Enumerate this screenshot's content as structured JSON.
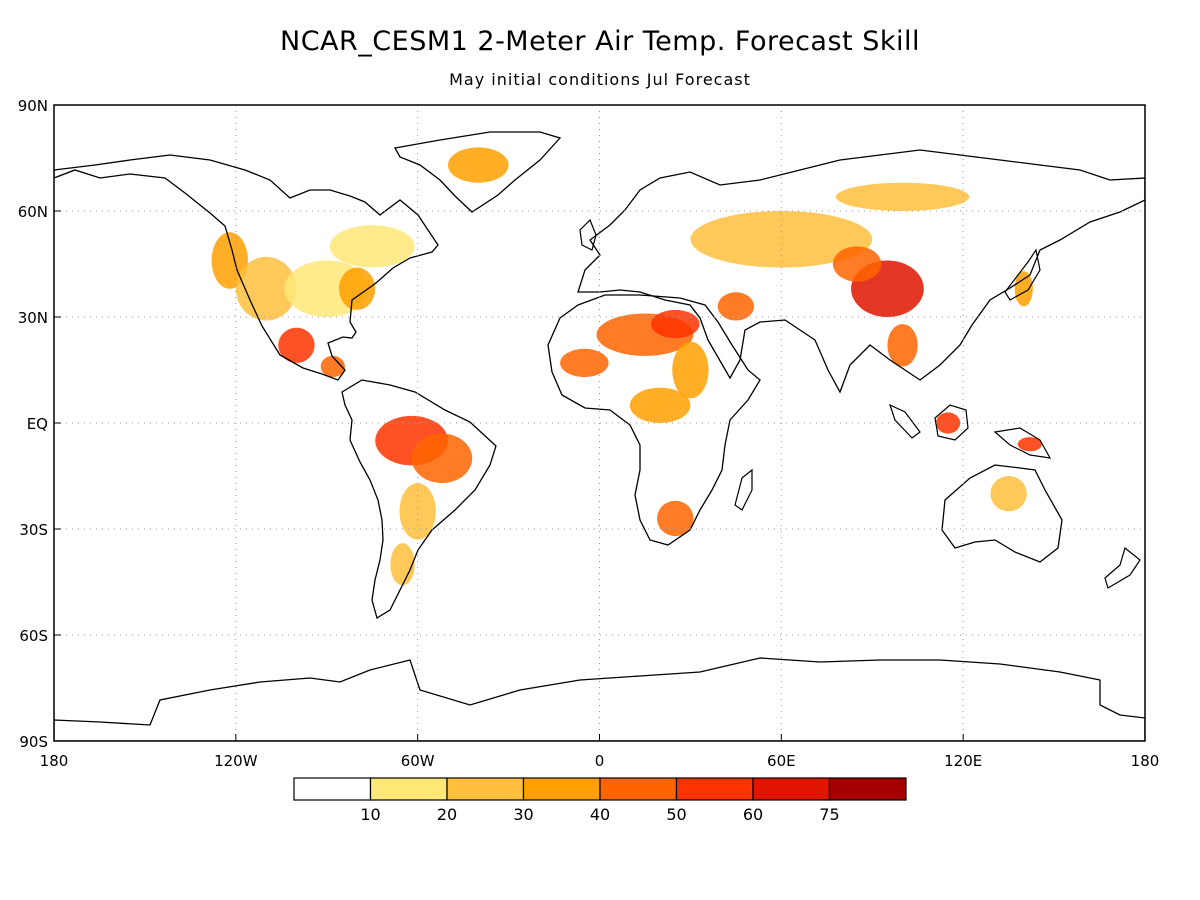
{
  "title": "NCAR_CESM1 2-Meter Air Temp. Forecast Skill",
  "subtitle": "May initial conditions   Jul Forecast",
  "map": {
    "projection": "equirectangular",
    "lon_range": [
      -180,
      180
    ],
    "lat_range": [
      -90,
      90
    ],
    "grid": "dotted",
    "lon_ticks": [
      {
        "value": -180,
        "label": "180"
      },
      {
        "value": -120,
        "label": "120W"
      },
      {
        "value": -60,
        "label": "60W"
      },
      {
        "value": 0,
        "label": "0"
      },
      {
        "value": 60,
        "label": "60E"
      },
      {
        "value": 120,
        "label": "120E"
      },
      {
        "value": 180,
        "label": "180"
      }
    ],
    "lat_ticks": [
      {
        "value": 90,
        "label": "90N"
      },
      {
        "value": 60,
        "label": "60N"
      },
      {
        "value": 30,
        "label": "30N"
      },
      {
        "value": 0,
        "label": "EQ"
      },
      {
        "value": -30,
        "label": "30S"
      },
      {
        "value": -60,
        "label": "60S"
      },
      {
        "value": -90,
        "label": "90S"
      }
    ]
  },
  "colorbar": {
    "colors": [
      "#ffffff",
      "#ffe878",
      "#ffc03c",
      "#ffa000",
      "#ff6400",
      "#ff3200",
      "#e11400",
      "#a50000"
    ],
    "labels": [
      "10",
      "20",
      "30",
      "40",
      "50",
      "60",
      "75"
    ]
  },
  "skill_regions": [
    {
      "lon": -122,
      "lat": 46,
      "rx": 6,
      "ry": 8,
      "level": 3
    },
    {
      "lon": -110,
      "lat": 38,
      "rx": 10,
      "ry": 9,
      "level": 2
    },
    {
      "lon": -90,
      "lat": 38,
      "rx": 14,
      "ry": 8,
      "level": 1
    },
    {
      "lon": -80,
      "lat": 38,
      "rx": 6,
      "ry": 6,
      "level": 3
    },
    {
      "lon": -100,
      "lat": 22,
      "rx": 6,
      "ry": 5,
      "level": 5
    },
    {
      "lon": -88,
      "lat": 16,
      "rx": 4,
      "ry": 3,
      "level": 4
    },
    {
      "lon": -75,
      "lat": 50,
      "rx": 14,
      "ry": 6,
      "level": 1
    },
    {
      "lon": -40,
      "lat": 73,
      "rx": 10,
      "ry": 5,
      "level": 3
    },
    {
      "lon": -62,
      "lat": -5,
      "rx": 12,
      "ry": 7,
      "level": 5
    },
    {
      "lon": -52,
      "lat": -10,
      "rx": 10,
      "ry": 7,
      "level": 4
    },
    {
      "lon": -60,
      "lat": -25,
      "rx": 6,
      "ry": 8,
      "level": 2
    },
    {
      "lon": -65,
      "lat": -40,
      "rx": 4,
      "ry": 6,
      "level": 2
    },
    {
      "lon": 15,
      "lat": 25,
      "rx": 16,
      "ry": 6,
      "level": 4
    },
    {
      "lon": 25,
      "lat": 28,
      "rx": 8,
      "ry": 4,
      "level": 5
    },
    {
      "lon": -5,
      "lat": 17,
      "rx": 8,
      "ry": 4,
      "level": 4
    },
    {
      "lon": 30,
      "lat": 15,
      "rx": 6,
      "ry": 8,
      "level": 3
    },
    {
      "lon": 20,
      "lat": 5,
      "rx": 10,
      "ry": 5,
      "level": 3
    },
    {
      "lon": 25,
      "lat": -27,
      "rx": 6,
      "ry": 5,
      "level": 4
    },
    {
      "lon": 45,
      "lat": 33,
      "rx": 6,
      "ry": 4,
      "level": 4
    },
    {
      "lon": 60,
      "lat": 52,
      "rx": 30,
      "ry": 8,
      "level": 2
    },
    {
      "lon": 95,
      "lat": 38,
      "rx": 12,
      "ry": 8,
      "level": 6
    },
    {
      "lon": 85,
      "lat": 45,
      "rx": 8,
      "ry": 5,
      "level": 4
    },
    {
      "lon": 100,
      "lat": 22,
      "rx": 5,
      "ry": 6,
      "level": 4
    },
    {
      "lon": 115,
      "lat": 0,
      "rx": 4,
      "ry": 3,
      "level": 5
    },
    {
      "lon": 142,
      "lat": -6,
      "rx": 4,
      "ry": 2,
      "level": 5
    },
    {
      "lon": 135,
      "lat": -20,
      "rx": 6,
      "ry": 5,
      "level": 2
    },
    {
      "lon": 140,
      "lat": 38,
      "rx": 3,
      "ry": 5,
      "level": 3
    },
    {
      "lon": 100,
      "lat": 64,
      "rx": 22,
      "ry": 4,
      "level": 2
    }
  ]
}
